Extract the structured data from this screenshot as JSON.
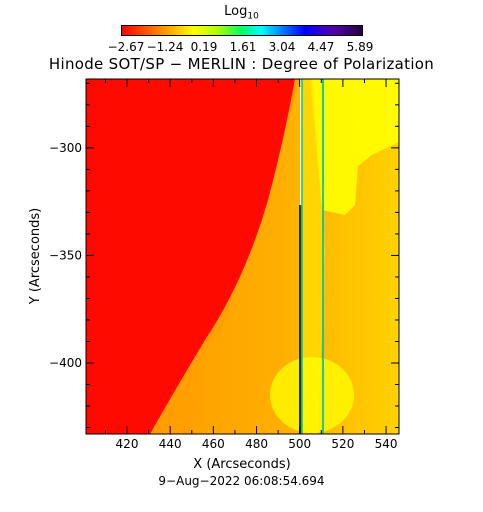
{
  "colorbar": {
    "title": "Log",
    "title_sub": "10",
    "ticks": [
      "−2.67",
      "−1.24",
      "0.19",
      "1.61",
      "3.04",
      "4.47",
      "5.89"
    ]
  },
  "chart_data": {
    "type": "heatmap",
    "title": "Hinode SOT/SP − MERLIN : Degree of Polarization",
    "xlabel": "X (Arcseconds)",
    "ylabel": "Y (Arcseconds)",
    "xlim": [
      401,
      546
    ],
    "ylim": [
      -433,
      -268
    ],
    "x_ticks": [
      420,
      440,
      460,
      480,
      500,
      520,
      540
    ],
    "y_ticks": [
      -300,
      -350,
      -400
    ],
    "x_tick_labels": [
      "420",
      "440",
      "460",
      "480",
      "500",
      "520",
      "540"
    ],
    "y_tick_labels": [
      "−300",
      "−350",
      "−400"
    ],
    "colorscale_range": [
      -2.67,
      5.89
    ],
    "vertical_lines_x": [
      502,
      511
    ],
    "regions": [
      {
        "name": "red",
        "color": "#ff0000"
      },
      {
        "name": "orange",
        "color": "#ffa000"
      },
      {
        "name": "yellow",
        "color": "#ffff00"
      }
    ]
  },
  "footer": {
    "timestamp": "9−Aug−2022 06:08:54.694"
  }
}
